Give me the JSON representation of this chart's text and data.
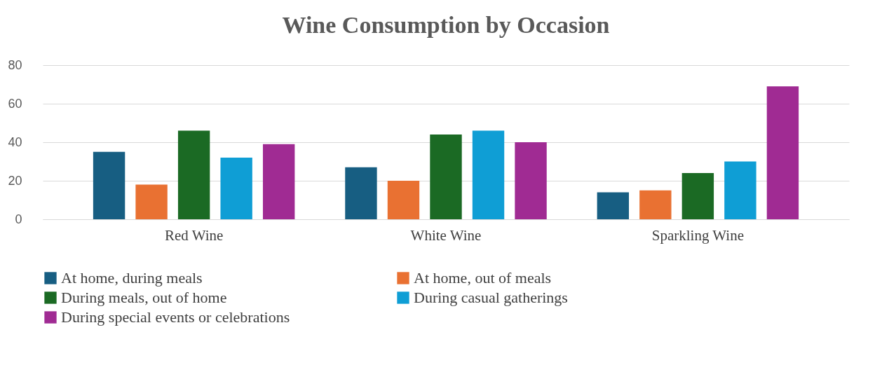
{
  "chart_data": {
    "type": "bar",
    "title": "Wine Consumption by Occasion",
    "categories": [
      "Red Wine",
      "White Wine",
      "Sparkling Wine"
    ],
    "series": [
      {
        "name": "At home, during meals",
        "color": "#175e82",
        "values": [
          35,
          27,
          14
        ]
      },
      {
        "name": "At home, out of meals",
        "color": "#e97132",
        "values": [
          18,
          20,
          15
        ]
      },
      {
        "name": "During meals, out of home",
        "color": "#1b6a24",
        "values": [
          46,
          44,
          24
        ]
      },
      {
        "name": "During casual gatherings",
        "color": "#0f9ed5",
        "values": [
          32,
          46,
          30
        ]
      },
      {
        "name": "During special events or celebrations",
        "color": "#a02b93",
        "values": [
          39,
          40,
          69
        ]
      }
    ],
    "ylim": [
      0,
      80
    ],
    "yticks": [
      0,
      20,
      40,
      60,
      80
    ],
    "grid": "y",
    "legend": "bottom"
  }
}
